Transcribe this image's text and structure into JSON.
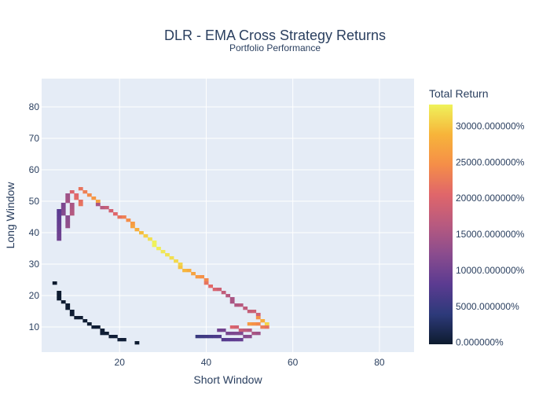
{
  "chart_data": {
    "type": "heatmap",
    "title": "DLR - EMA Cross Strategy Returns",
    "subtitle": "Portfolio Performance",
    "xlabel": "Short Window",
    "ylabel": "Long Window",
    "xlim": [
      2,
      88
    ],
    "ylim": [
      2,
      89
    ],
    "xticks": [
      "20",
      "40",
      "60",
      "80"
    ],
    "yticks": [
      "10",
      "20",
      "30",
      "40",
      "50",
      "60",
      "70",
      "80"
    ],
    "grid": true,
    "colorbar": {
      "title": "Total Return",
      "range": [
        -250,
        33000
      ],
      "tick_values": [
        0,
        5000,
        10000,
        15000,
        20000,
        25000,
        30000
      ],
      "tick_labels": [
        "0.000000%",
        "5000.000000%",
        "10000.000000%",
        "15000.000000%",
        "20000.000000%",
        "25000.000000%",
        "30000.000000%"
      ],
      "colorscale": [
        "#0d1b2e",
        "#2d3a7a",
        "#5b3b91",
        "#8a4c8e",
        "#b85a7f",
        "#e0666a",
        "#f58e48",
        "#f7b43a",
        "#eff25a"
      ]
    },
    "segments": [
      {
        "x": [
          5,
          5
        ],
        "y": [
          24,
          24
        ],
        "v": [
          -200,
          -200
        ]
      },
      {
        "x": [
          6,
          6
        ],
        "y": [
          21,
          19
        ],
        "v": [
          -150,
          -100
        ]
      },
      {
        "x": [
          7,
          9
        ],
        "y": [
          18,
          15
        ],
        "v": [
          -100,
          0
        ]
      },
      {
        "x": [
          9,
          17
        ],
        "y": [
          14,
          8
        ],
        "v": [
          0,
          100
        ]
      },
      {
        "x": [
          16,
          21
        ],
        "y": [
          8,
          6
        ],
        "v": [
          200,
          300
        ]
      },
      {
        "x": [
          24,
          24
        ],
        "y": [
          5,
          5
        ],
        "v": [
          -100,
          -100
        ]
      },
      {
        "x": [
          11,
          15
        ],
        "y": [
          54,
          50
        ],
        "v": [
          22000,
          27000
        ]
      },
      {
        "x": [
          9,
          11
        ],
        "y": [
          53,
          49
        ],
        "v": [
          20000,
          22000
        ]
      },
      {
        "x": [
          8,
          9
        ],
        "y": [
          52,
          46
        ],
        "v": [
          14000,
          16000
        ]
      },
      {
        "x": [
          7,
          8
        ],
        "y": [
          49,
          42
        ],
        "v": [
          11000,
          13000
        ]
      },
      {
        "x": [
          6,
          6
        ],
        "y": [
          47,
          38
        ],
        "v": [
          8000,
          10000
        ]
      },
      {
        "x": [
          15,
          23
        ],
        "y": [
          49,
          43
        ],
        "v": [
          15000,
          26000
        ]
      },
      {
        "x": [
          23,
          28
        ],
        "y": [
          42,
          37
        ],
        "v": [
          27000,
          33000
        ]
      },
      {
        "x": [
          28,
          34
        ],
        "y": [
          36,
          30
        ],
        "v": [
          33000,
          31000
        ]
      },
      {
        "x": [
          34,
          40
        ],
        "y": [
          29,
          25
        ],
        "v": [
          30000,
          24000
        ]
      },
      {
        "x": [
          40,
          46
        ],
        "y": [
          24,
          19
        ],
        "v": [
          22000,
          15000
        ]
      },
      {
        "x": [
          46,
          52
        ],
        "y": [
          18,
          14
        ],
        "v": [
          15000,
          19000
        ]
      },
      {
        "x": [
          52,
          54
        ],
        "y": [
          13,
          11
        ],
        "v": [
          25000,
          31000
        ]
      },
      {
        "x": [
          50,
          54
        ],
        "y": [
          11,
          10
        ],
        "v": [
          26000,
          22000
        ]
      },
      {
        "x": [
          46,
          52
        ],
        "y": [
          10,
          8
        ],
        "v": [
          20000,
          14000
        ]
      },
      {
        "x": [
          43,
          50
        ],
        "y": [
          9,
          7
        ],
        "v": [
          10000,
          12000
        ]
      },
      {
        "x": [
          38,
          48
        ],
        "y": [
          7,
          6
        ],
        "v": [
          5000,
          9000
        ]
      }
    ]
  }
}
